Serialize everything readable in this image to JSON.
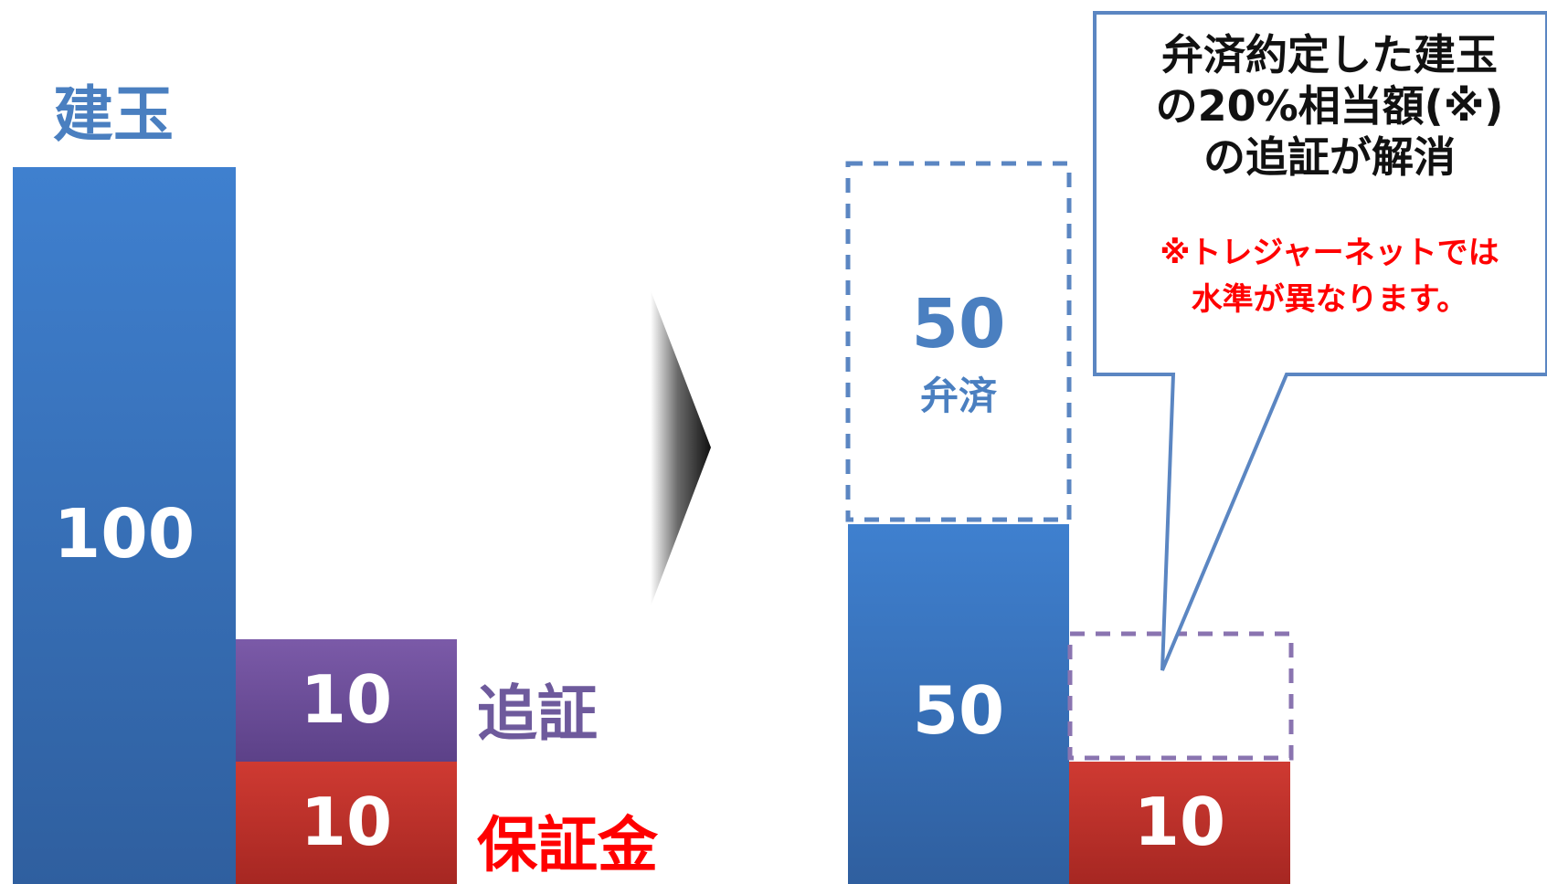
{
  "left": {
    "title": "建玉",
    "position_value": "100",
    "margin_call_value": "10",
    "margin_call_label": "追証",
    "deposit_value": "10",
    "deposit_label": "保証金"
  },
  "right": {
    "settled_value": "50",
    "settled_label": "弁済",
    "remaining_value": "50",
    "deposit_value": "10"
  },
  "callout": {
    "lines": [
      "弁済約定した建玉",
      "の20%相当額(※)",
      "の追証が解消"
    ],
    "note_lines": [
      "※トレジャーネットでは",
      "水準が異なります。"
    ]
  },
  "colors": {
    "title_blue": "#4a7fc0",
    "bar_blue": "#3a74c4",
    "bar_purple": "#6e4f9a",
    "bar_red": "#c0312c",
    "label_purple": "#6e5a9c",
    "label_red": "#ff0000",
    "dashed_blue": "#5b86c2",
    "dashed_purple": "#8a74b0",
    "callout_border": "#5b86c2"
  },
  "icons": {
    "arrow": "triangle-right-arrow"
  }
}
